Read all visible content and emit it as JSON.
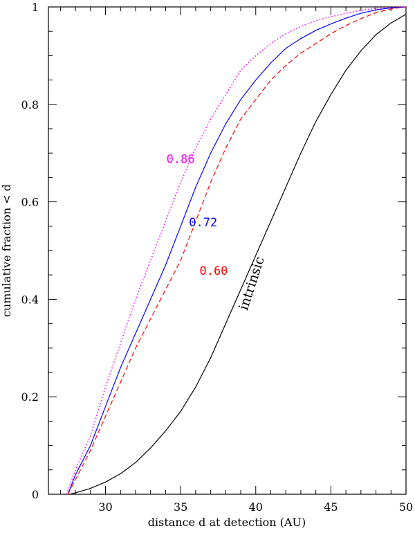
{
  "chart_data": {
    "type": "line",
    "title": "",
    "xlabel": "distance d at detection (AU)",
    "ylabel": "cumulative fraction < d",
    "xlim": [
      26.2,
      50
    ],
    "ylim": [
      0,
      1
    ],
    "xticks": [
      30,
      35,
      40,
      45,
      50
    ],
    "yticks": [
      0,
      0.2,
      0.4,
      0.6,
      0.8,
      1
    ],
    "xtick_labels": [
      "30",
      "35",
      "40",
      "45",
      "50"
    ],
    "ytick_labels": [
      "0",
      "0.2",
      "0.4",
      "0.6",
      "0.8",
      "1"
    ],
    "grid": false,
    "series": [
      {
        "name": "0.86",
        "color": "#ff00ff",
        "style": "dotted",
        "x": [
          27.4,
          28.0,
          29.0,
          30.0,
          31.0,
          32.0,
          33.0,
          34.0,
          35.0,
          36.0,
          37.0,
          38.0,
          39.0,
          40.0,
          41.0,
          42.0,
          43.0,
          44.0,
          45.0,
          46.0,
          47.0,
          48.0,
          49.0,
          50.0
        ],
        "y": [
          0.0,
          0.05,
          0.12,
          0.22,
          0.31,
          0.4,
          0.48,
          0.56,
          0.64,
          0.71,
          0.77,
          0.82,
          0.87,
          0.9,
          0.925,
          0.945,
          0.96,
          0.972,
          0.98,
          0.987,
          0.993,
          0.997,
          0.999,
          1.0
        ]
      },
      {
        "name": "0.72",
        "color": "#0000ff",
        "style": "solid",
        "x": [
          27.5,
          28.0,
          29.0,
          30.0,
          31.0,
          32.0,
          33.0,
          34.0,
          35.0,
          36.0,
          37.0,
          38.0,
          39.0,
          40.0,
          41.0,
          42.0,
          43.0,
          44.0,
          45.0,
          46.0,
          47.0,
          48.0,
          49.0,
          50.0
        ],
        "y": [
          0.0,
          0.04,
          0.1,
          0.18,
          0.26,
          0.33,
          0.4,
          0.47,
          0.55,
          0.63,
          0.7,
          0.76,
          0.81,
          0.85,
          0.885,
          0.915,
          0.935,
          0.952,
          0.965,
          0.977,
          0.987,
          0.994,
          0.998,
          1.0
        ]
      },
      {
        "name": "0.60",
        "color": "#ff0000",
        "style": "dashed",
        "x": [
          27.5,
          28.0,
          29.0,
          30.0,
          31.0,
          32.0,
          33.0,
          34.0,
          35.0,
          36.0,
          37.0,
          38.0,
          39.0,
          40.0,
          41.0,
          42.0,
          43.0,
          44.0,
          45.0,
          46.0,
          47.0,
          48.0,
          49.0,
          50.0
        ],
        "y": [
          0.0,
          0.03,
          0.09,
          0.16,
          0.23,
          0.3,
          0.36,
          0.42,
          0.48,
          0.56,
          0.64,
          0.71,
          0.77,
          0.81,
          0.85,
          0.88,
          0.905,
          0.925,
          0.945,
          0.962,
          0.976,
          0.988,
          0.996,
          1.0
        ]
      },
      {
        "name": "intrinsic",
        "color": "#000000",
        "style": "solid",
        "x": [
          27.6,
          28.0,
          29.0,
          30.0,
          31.0,
          32.0,
          33.0,
          34.0,
          35.0,
          36.0,
          37.0,
          38.0,
          39.0,
          40.0,
          41.0,
          42.0,
          43.0,
          44.0,
          45.0,
          46.0,
          47.0,
          48.0,
          49.0,
          50.0
        ],
        "y": [
          0.0,
          0.003,
          0.012,
          0.025,
          0.042,
          0.065,
          0.095,
          0.13,
          0.17,
          0.22,
          0.28,
          0.35,
          0.42,
          0.49,
          0.56,
          0.63,
          0.7,
          0.765,
          0.82,
          0.87,
          0.91,
          0.943,
          0.967,
          0.985
        ]
      }
    ],
    "annotations": [
      {
        "text": "0.86",
        "color": "#ff00ff",
        "x": 35.0,
        "y": 0.68,
        "rotate": 0
      },
      {
        "text": "0.72",
        "color": "#0000ff",
        "x": 36.5,
        "y": 0.55,
        "rotate": 0
      },
      {
        "text": "0.60",
        "color": "#ff0000",
        "x": 37.2,
        "y": 0.45,
        "rotate": 0
      },
      {
        "text": "intrinsic",
        "color": "#000000",
        "x": 40.0,
        "y": 0.43,
        "rotate": -72
      }
    ]
  }
}
